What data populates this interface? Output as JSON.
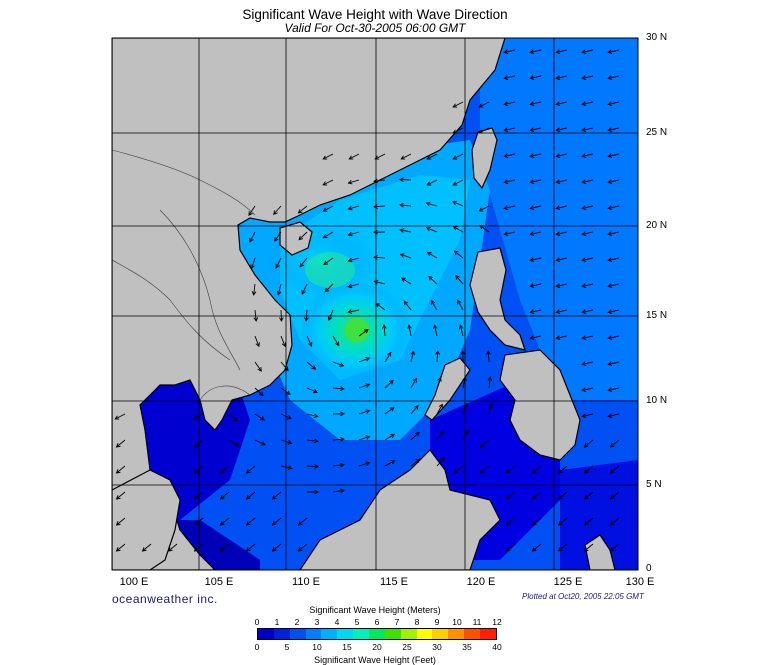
{
  "header": {
    "title": "Significant Wave Height with Wave Direction",
    "subtitle": "Valid For Oct-30-2005 06:00 GMT"
  },
  "axes": {
    "lon_labels": [
      "100 E",
      "105 E",
      "110 E",
      "115 E",
      "120 E",
      "125 E",
      "130 E"
    ],
    "lat_labels": [
      "30 N",
      "25 N",
      "20 N",
      "15 N",
      "10 N",
      "5 N",
      "0"
    ]
  },
  "footer": {
    "brand": "oceanweather inc.",
    "plotted": "Plotted at Oct20, 2005 22:05 GMT"
  },
  "legend": {
    "meters_title": "Significant Wave Height (Meters)",
    "meters_ticks": [
      "0",
      "1",
      "2",
      "3",
      "4",
      "5",
      "6",
      "7",
      "8",
      "9",
      "10",
      "11",
      "12"
    ],
    "feet_title": "Significant Wave Height (Feet)",
    "feet_ticks": [
      "0",
      "5",
      "10",
      "15",
      "20",
      "25",
      "30",
      "35",
      "40"
    ],
    "colors": [
      "#0000c8",
      "#0020e0",
      "#0050f0",
      "#0080ff",
      "#00b0ff",
      "#00d8f0",
      "#00f0c0",
      "#00e860",
      "#40e000",
      "#a0f000",
      "#ffff00",
      "#ffd000",
      "#ff9000",
      "#ff5000",
      "#ff2000"
    ]
  },
  "colors": {
    "land": "#c0c0c0",
    "deep_blue": "#0000dc",
    "mid_blue": "#0040f0",
    "light_blue": "#0080ff",
    "cyan": "#00c0ff",
    "teal": "#00e0d0",
    "green": "#40e860"
  }
}
